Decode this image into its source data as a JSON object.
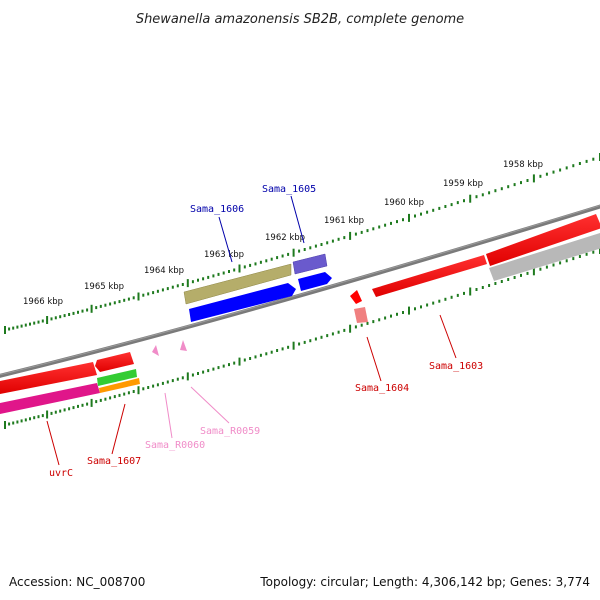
{
  "title": "Shewanella amazonensis SB2B, complete genome",
  "ticks": [
    "1958 kbp",
    "1959 kbp",
    "1960 kbp",
    "1961 kbp",
    "1962 kbp",
    "1963 kbp",
    "1964 kbp",
    "1965 kbp",
    "1966 kbp"
  ],
  "gene_labels": [
    {
      "id": "sama1605",
      "text": "Sama_1605",
      "color": "#0000aa"
    },
    {
      "id": "sama1606",
      "text": "Sama_1606",
      "color": "#0000aa"
    },
    {
      "id": "sama1603",
      "text": "Sama_1603",
      "color": "#cc0000"
    },
    {
      "id": "sama1604",
      "text": "Sama_1604",
      "color": "#cc0000"
    },
    {
      "id": "samaR0059",
      "text": "Sama_R0059",
      "color": "#f08cc8"
    },
    {
      "id": "samaR0060",
      "text": "Sama_R0060",
      "color": "#f08cc8"
    },
    {
      "id": "sama1607",
      "text": "Sama_1607",
      "color": "#cc0000"
    },
    {
      "id": "uvrC",
      "text": "uvrC",
      "color": "#cc0000"
    }
  ],
  "colors": {
    "backbone": "#7a7a7a",
    "tick_dots": "#1e7a1e",
    "red": "#ff0000",
    "blue": "#0000ff",
    "olive": "#b5ad6a",
    "purple": "#6a5acd",
    "gray": "#b8b8b8",
    "magenta": "#e0168a",
    "green": "#33cc33",
    "orange": "#ff9900",
    "pink": "#f08cc8",
    "salmon": "#f08080"
  },
  "footer": {
    "accession": "Accession: NC_008700",
    "topology": "Topology: circular; Length: 4,306,142 bp; Genes: 3,774"
  }
}
